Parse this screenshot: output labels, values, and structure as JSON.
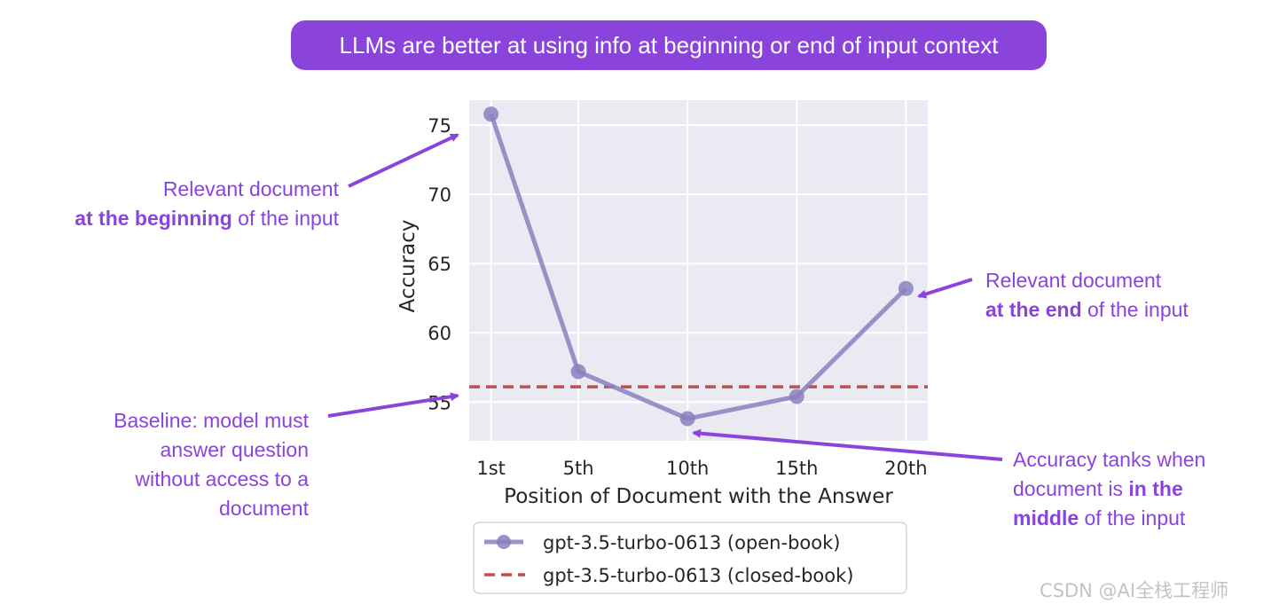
{
  "banner": {
    "text": "LLMs are better at using info at beginning or end of input context"
  },
  "annotations": {
    "beginning": {
      "line1": "Relevant document",
      "bold": "at the beginning",
      "rest": " of the input"
    },
    "end": {
      "line1": "Relevant document",
      "bold": "at the end",
      "rest": " of the input"
    },
    "baseline": {
      "lines": [
        "Baseline: model must",
        "answer question",
        "without access to a",
        "document"
      ]
    },
    "middle": {
      "line1": "Accuracy tanks when",
      "line2_pre": "document is ",
      "line2_bold": "in the",
      "line3_bold": "middle",
      "line3_rest": " of the input"
    }
  },
  "watermark": "CSDN @AI全栈工程师",
  "chart_data": {
    "type": "line",
    "xlabel": "Position of Document with the Answer",
    "ylabel": "Accuracy",
    "categories": [
      "1st",
      "5th",
      "10th",
      "15th",
      "20th"
    ],
    "x": [
      1,
      5,
      10,
      15,
      20
    ],
    "yticks": [
      55,
      60,
      65,
      70,
      75
    ],
    "ylim": [
      52.2,
      76.8
    ],
    "xlim": [
      0,
      21
    ],
    "grid": true,
    "legend_placement": "bottom",
    "series": [
      {
        "name": "gpt-3.5-turbo-0613 (open-book)",
        "style": "solid-marker",
        "color": "#8a80c0",
        "values": [
          75.8,
          57.2,
          53.8,
          55.4,
          63.2
        ]
      },
      {
        "name": "gpt-3.5-turbo-0613 (closed-book)",
        "style": "dashed",
        "color": "#c0504d",
        "values": [
          56.1,
          56.1,
          56.1,
          56.1,
          56.1
        ]
      }
    ],
    "colors": {
      "plot_bg": "#eaeaf2",
      "grid": "#ffffff",
      "annotation": "#8a44dc"
    }
  }
}
